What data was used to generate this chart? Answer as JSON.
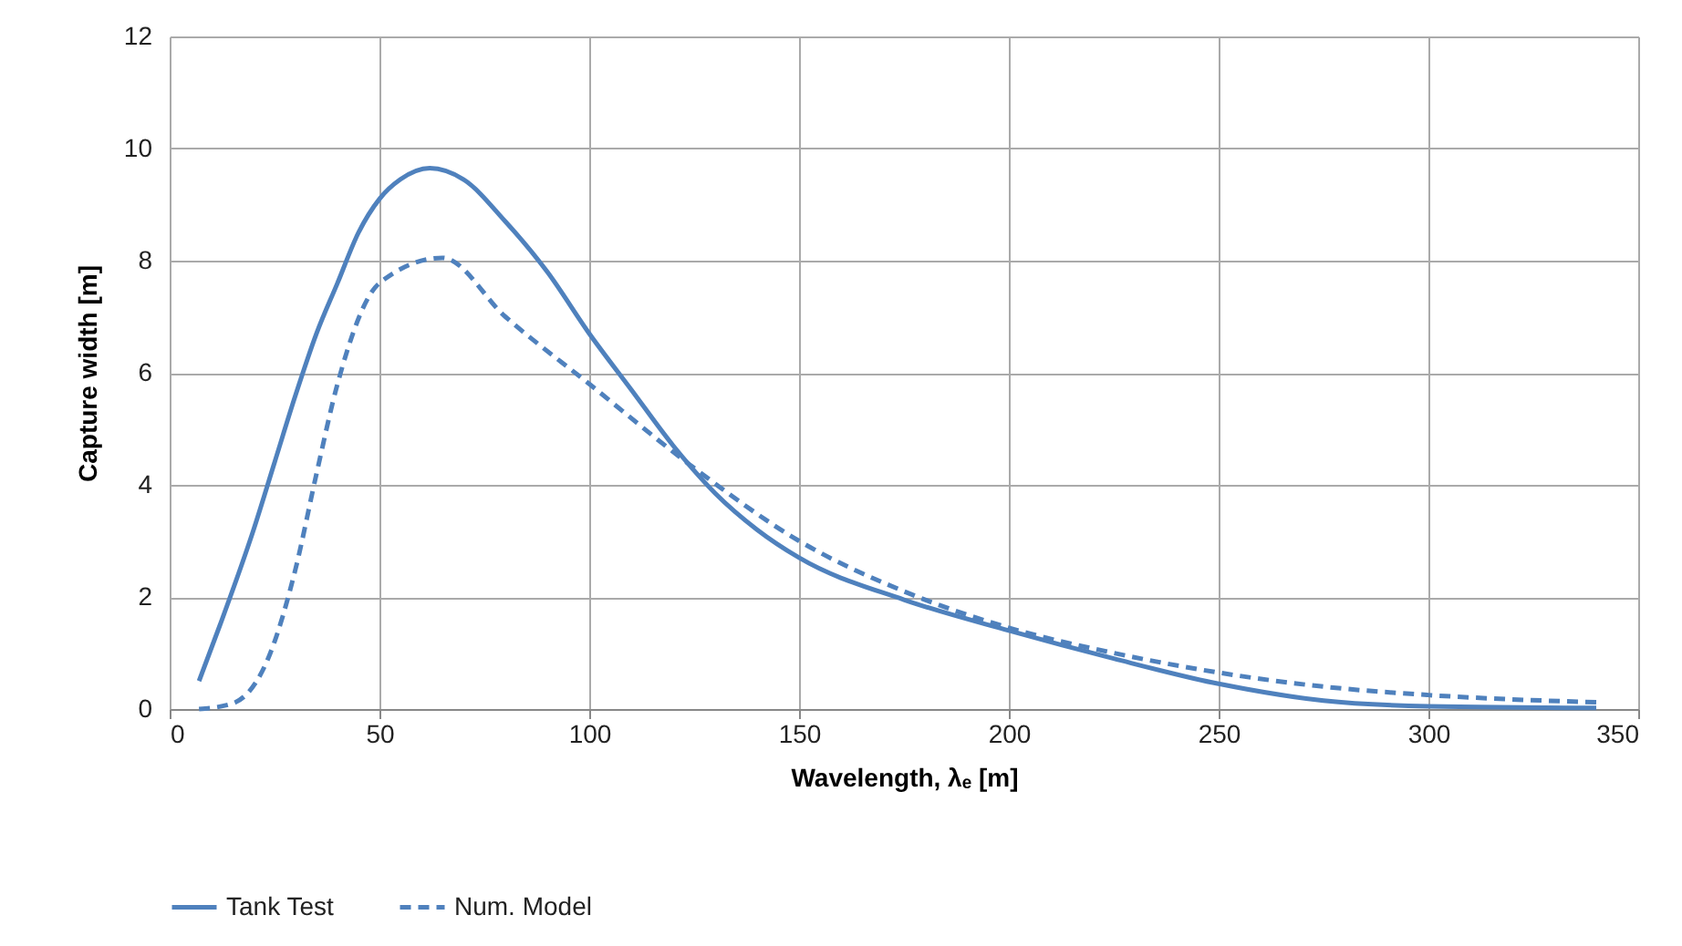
{
  "chart_data": {
    "type": "line",
    "xlabel": "Wavelength, λₑ [m]",
    "ylabel": "Capture width [m]",
    "xlim": [
      0,
      350
    ],
    "xticks": [
      0,
      50,
      100,
      150,
      200,
      250,
      300,
      350
    ],
    "ylim": [
      0,
      12
    ],
    "yticks": [
      0,
      2,
      4,
      6,
      8,
      10,
      12
    ],
    "grid": true,
    "legend": "bottom",
    "marker": "none",
    "series": [
      {
        "name": "Tank Test",
        "color": "#4f81bd",
        "line_style": "solid",
        "x": [
          7,
          12,
          20,
          25,
          30,
          35,
          40,
          45,
          50,
          55,
          62,
          70,
          80,
          90,
          100,
          110,
          120,
          130,
          140,
          150,
          175,
          200,
          225,
          250,
          275,
          300,
          340
        ],
        "values": [
          0.5,
          1.5,
          3.2,
          4.4,
          5.6,
          6.7,
          7.6,
          8.5,
          9.1,
          9.45,
          9.65,
          9.45,
          8.7,
          7.8,
          6.7,
          5.7,
          4.7,
          3.85,
          3.2,
          2.7,
          1.95,
          1.4,
          0.9,
          0.45,
          0.15,
          0.05,
          0.02
        ]
      },
      {
        "name": "Num. Model",
        "color": "#4f81bd",
        "line_style": "dashed",
        "x": [
          7,
          15,
          24,
          30,
          35,
          40,
          50,
          65,
          80,
          100,
          125,
          150,
          175,
          200,
          225,
          250,
          275,
          300,
          340
        ],
        "values": [
          0,
          0.1,
          1.0,
          2.5,
          4.2,
          5.8,
          7.6,
          8.05,
          7.0,
          5.8,
          4.3,
          3.0,
          2.1,
          1.45,
          1.0,
          0.65,
          0.4,
          0.25,
          0.12
        ]
      }
    ]
  }
}
